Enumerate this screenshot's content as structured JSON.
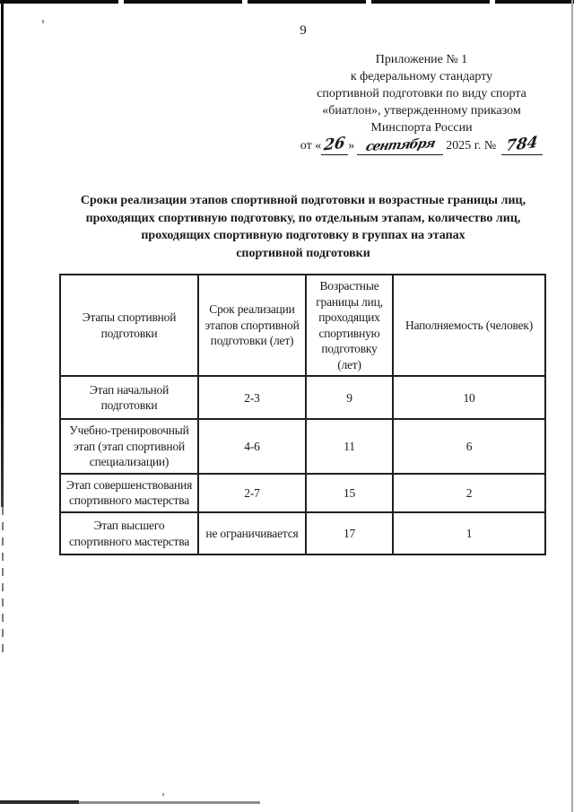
{
  "colors": {
    "ink": "#1a1a1a",
    "scan_edge": "#9a9a9a"
  },
  "page": {
    "number": "9"
  },
  "appendix": {
    "lines": [
      "Приложение № 1",
      "к федеральному стандарту",
      "спортивной подготовки по виду спорта",
      "«биатлон», утвержденному приказом",
      "Минспорта России"
    ],
    "date": {
      "prefix": "от «",
      "day": "26",
      "close_quote": "»",
      "month": "сентября",
      "year": "2025 г. №",
      "number": "784"
    }
  },
  "title": {
    "lines": [
      "Сроки реализации этапов спортивной подготовки и возрастные границы лиц,",
      "проходящих спортивную подготовку, по отдельным этапам, количество лиц,",
      "проходящих спортивную подготовку в группах на этапах",
      "спортивной подготовки"
    ]
  },
  "table": {
    "headers": [
      "Этапы спортивной подготовки",
      "Срок реализации этапов спортивной подготовки (лет)",
      "Возрастные границы лиц, проходящих спортивную подготовку (лет)",
      "Наполняемость (человек)"
    ],
    "rows": [
      [
        "Этап начальной подготовки",
        "2-3",
        "9",
        "10"
      ],
      [
        "Учебно-тренировочный этап (этап спортивной специализации)",
        "4-6",
        "11",
        "6"
      ],
      [
        "Этап совершенствования спортивного мастерства",
        "2-7",
        "15",
        "2"
      ],
      [
        "Этап высшего спортивного мастерства",
        "не ограничивается",
        "17",
        "1"
      ]
    ]
  }
}
